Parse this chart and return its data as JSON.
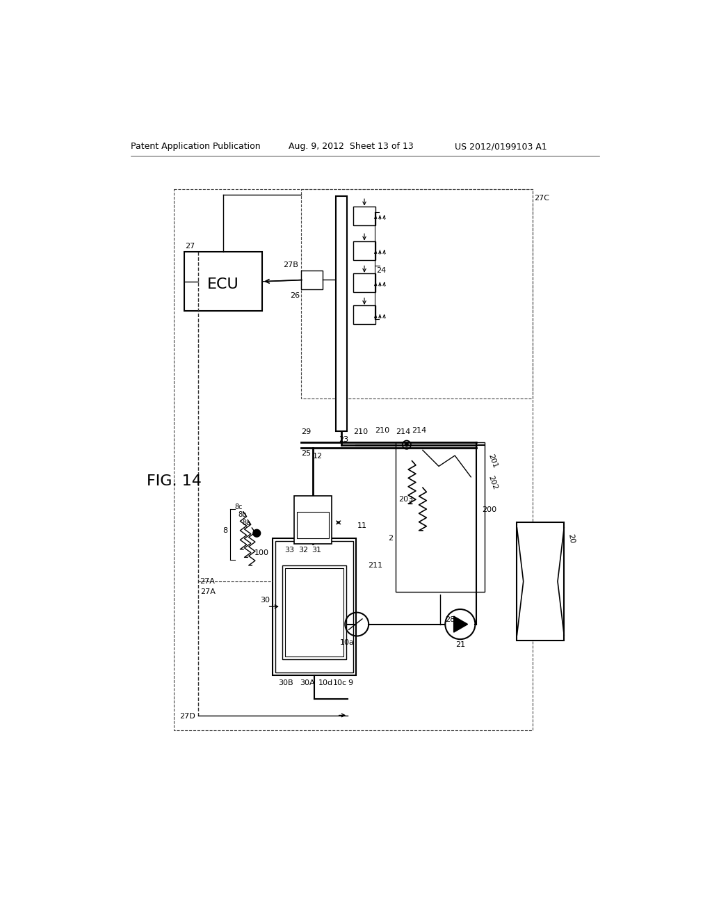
{
  "header_left": "Patent Application Publication",
  "header_mid": "Aug. 9, 2012  Sheet 13 of 13",
  "header_right": "US 2012/0199103 A1",
  "fig_label": "FIG. 14",
  "bg_color": "#ffffff"
}
